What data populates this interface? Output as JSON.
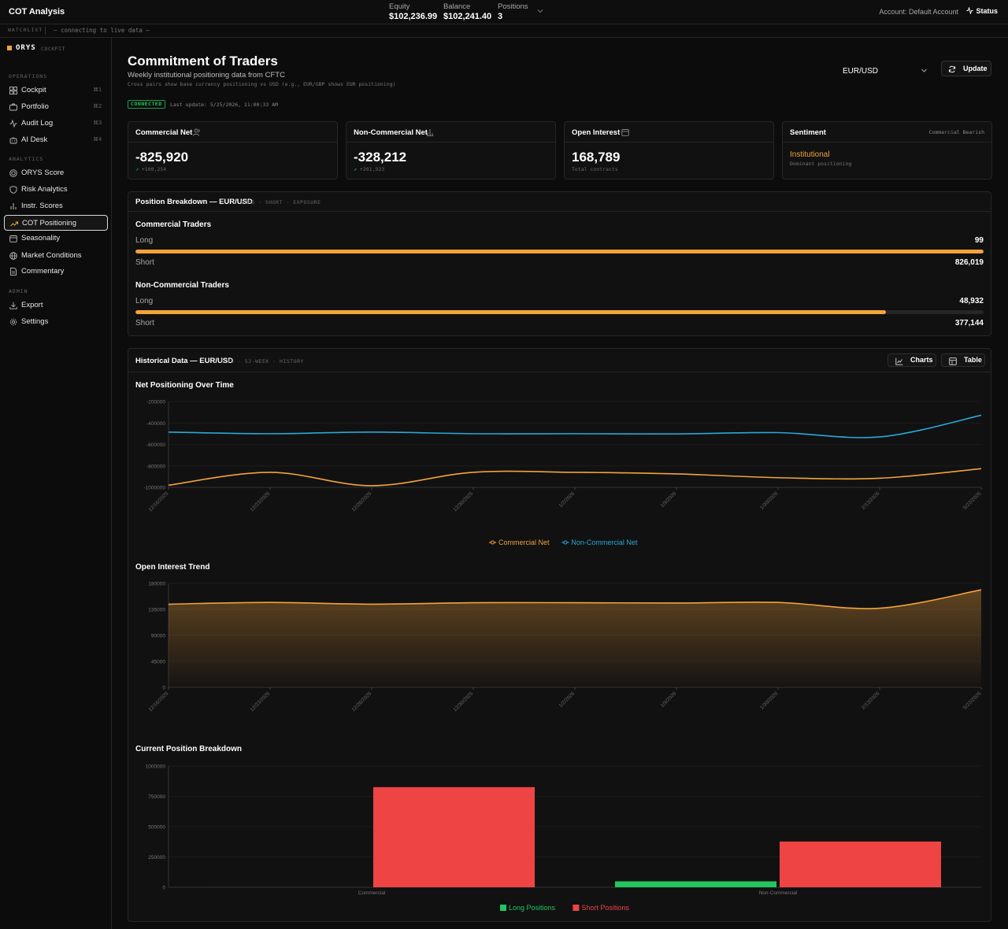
{
  "header": {
    "app_title": "COT Analysis",
    "equity_label": "Equity",
    "equity_value": "$102,236.99",
    "balance_label": "Balance",
    "balance_value": "$102,241.40",
    "positions_label": "Positions",
    "positions_value": "3",
    "account_label": "Account:",
    "account_value": "Default Account",
    "status_label": "Status"
  },
  "watchlist": {
    "label": "WATCHLIST",
    "text": "— connecting to live data —"
  },
  "sidebar": {
    "brand_name": "ORYS",
    "brand_sub": "COCKPIT",
    "sections": [
      {
        "label": "OPERATIONS",
        "items": [
          {
            "label": "Cockpit",
            "shortcut": "⌘1",
            "icon": "grid-icon"
          },
          {
            "label": "Portfolio",
            "shortcut": "⌘2",
            "icon": "briefcase-icon"
          },
          {
            "label": "Audit Log",
            "shortcut": "⌘3",
            "icon": "activity-icon"
          },
          {
            "label": "AI Desk",
            "shortcut": "⌘4",
            "icon": "bot-icon"
          }
        ]
      },
      {
        "label": "ANALYTICS",
        "items": [
          {
            "label": "ORYS Score",
            "icon": "target-icon"
          },
          {
            "label": "Risk Analytics",
            "icon": "shield-icon"
          },
          {
            "label": "Instr. Scores",
            "icon": "bar-chart-icon"
          },
          {
            "label": "COT Positioning",
            "icon": "trending-up-icon",
            "active": true
          },
          {
            "label": "Seasonality",
            "icon": "calendar-icon"
          },
          {
            "label": "Market Conditions",
            "icon": "globe-icon"
          },
          {
            "label": "Commentary",
            "icon": "document-icon"
          }
        ]
      },
      {
        "label": "ADMIN",
        "items": [
          {
            "label": "Export",
            "icon": "download-icon"
          },
          {
            "label": "Settings",
            "icon": "gear-icon"
          }
        ]
      }
    ]
  },
  "page": {
    "title": "Commitment of Traders",
    "subtitle": "Weekly institutional positioning data from CFTC",
    "note": "Cross pairs show base currency positioning vs USD (e.g., EUR/GBP shows EUR positioning)",
    "connection_badge": "CONNECTED",
    "last_update": "Last update: 5/25/2026, 11:00:33 AM",
    "pair_selected": "EUR/USD",
    "update_button": "Update"
  },
  "cards": {
    "commercial": {
      "title": "Commercial Net",
      "value": "-825,920",
      "delta": "+100,254",
      "icon": "users-icon"
    },
    "noncommercial": {
      "title": "Non-Commercial Net",
      "value": "-328,212",
      "delta": "+201,923",
      "icon": "bar-chart-icon"
    },
    "open_interest": {
      "title": "Open Interest",
      "value": "168,789",
      "sub": "Total contracts",
      "icon": "calendar-icon"
    },
    "sentiment": {
      "title": "Sentiment",
      "tag": "Commercial Bearish",
      "value": "Institutional",
      "sub": "Dominant positioning"
    }
  },
  "breakdown": {
    "title": "Position Breakdown — EUR/USD",
    "note": "LONG · SHORT · EXPOSURE",
    "groups": [
      {
        "label": "Commercial Traders",
        "long_label": "Long",
        "long_value": "99",
        "short_label": "Short",
        "short_value": "826,019",
        "short_fraction": 0.9999
      },
      {
        "label": "Non-Commercial Traders",
        "long_label": "Long",
        "long_value": "48,932",
        "short_label": "Short",
        "short_value": "377,144",
        "short_fraction": 0.885
      }
    ]
  },
  "history": {
    "title": "Historical Data — EUR/USD",
    "note": "CFTC · 52-WEEK · HISTORY",
    "charts_button": "Charts",
    "table_button": "Table",
    "net_chart_title": "Net Positioning Over Time",
    "oi_chart_title": "Open Interest Trend",
    "bar_chart_title": "Current Position Breakdown"
  },
  "chart_data": [
    {
      "type": "line",
      "title": "Net Positioning Over Time",
      "x": [
        "12/16/2025",
        "12/23/2025",
        "12/26/2025",
        "12/30/2025",
        "1/2/2026",
        "1/9/2026",
        "1/30/2026",
        "2/13/2026",
        "5/22/2026"
      ],
      "xtick_labels": [
        "12/16/2025",
        "12/23/2025",
        "12/26/2025",
        "12/30/2025",
        "1/2/2026",
        "1/9/2026",
        "1/30/2026",
        "2/13/2026",
        "5/22/2026"
      ],
      "ylim": [
        -1000000,
        -200000
      ],
      "yticks": [
        -200000,
        -400000,
        -600000,
        -800000,
        -1000000
      ],
      "series": [
        {
          "name": "Commercial Net",
          "color": "#f2a33a",
          "values": [
            -980000,
            -860000,
            -985000,
            -860000,
            -860000,
            -875000,
            -910000,
            -915000,
            -825920
          ]
        },
        {
          "name": "Non-Commercial Net",
          "color": "#2aa8d6",
          "values": [
            -485000,
            -500000,
            -485000,
            -500000,
            -500000,
            -502000,
            -490000,
            -530000,
            -328212
          ]
        }
      ],
      "legend": "bottom-center"
    },
    {
      "type": "area",
      "title": "Open Interest Trend",
      "x": [
        "12/16/2025",
        "12/23/2025",
        "12/26/2025",
        "12/30/2025",
        "1/2/2026",
        "1/9/2026",
        "1/30/2026",
        "2/13/2026",
        "5/22/2026"
      ],
      "xtick_labels": [
        "12/16/2025",
        "12/23/2025",
        "12/26/2025",
        "12/30/2025",
        "1/2/2026",
        "1/9/2026",
        "1/30/2026",
        "2/13/2026",
        "5/22/2026"
      ],
      "ylim": [
        0,
        180000
      ],
      "yticks": [
        180000,
        135000,
        90000,
        45000,
        0
      ],
      "series": [
        {
          "color": "#f2a33a",
          "values": [
            144000,
            147000,
            144000,
            146500,
            146500,
            146000,
            147000,
            137000,
            168789
          ]
        }
      ]
    },
    {
      "type": "bar",
      "title": "Current Position Breakdown",
      "categories": [
        "Commercial",
        "Non-Commercial"
      ],
      "ylim": [
        0,
        1000000
      ],
      "yticks": [
        1000000,
        750000,
        500000,
        250000,
        0
      ],
      "series": [
        {
          "name": "Long Positions",
          "color": "#22c55e",
          "values": [
            99,
            48932
          ]
        },
        {
          "name": "Short Positions",
          "color": "#ef4444",
          "values": [
            826019,
            377144
          ]
        }
      ],
      "legend": "bottom-center"
    }
  ]
}
